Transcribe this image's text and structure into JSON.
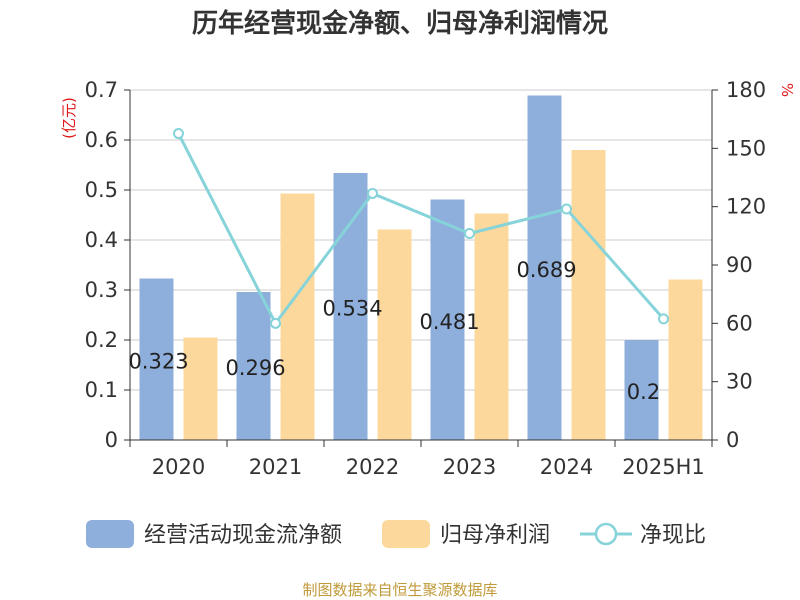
{
  "chart_data": {
    "type": "bar",
    "title": "历年经营现金净额、归母净利润情况",
    "left_axis_unit": "(亿元)",
    "right_axis_unit": "%",
    "categories": [
      "2020",
      "2021",
      "2022",
      "2023",
      "2024",
      "2025H1"
    ],
    "left_axis": {
      "ylim": [
        0,
        0.7
      ],
      "ticks": [
        "0",
        "0.1",
        "0.2",
        "0.3",
        "0.4",
        "0.5",
        "0.6",
        "0.7"
      ]
    },
    "right_axis": {
      "ylim": [
        0,
        180
      ],
      "ticks": [
        "0",
        "30",
        "60",
        "90",
        "120",
        "150",
        "180"
      ]
    },
    "grid": true,
    "legend_position": "bottom",
    "series": [
      {
        "name": "经营活动现金流净额",
        "type": "bar",
        "axis": "left",
        "color": "#8eaedb",
        "values": [
          0.323,
          0.296,
          0.534,
          0.481,
          0.689,
          0.2
        ],
        "labels": [
          "0.323",
          "0.296",
          "0.534",
          "0.481",
          "0.689",
          "0.2"
        ]
      },
      {
        "name": "归母净利润",
        "type": "bar",
        "axis": "left",
        "color": "#fdd89c",
        "values": [
          0.205,
          0.493,
          0.421,
          0.453,
          0.58,
          0.321
        ]
      },
      {
        "name": "净现比",
        "type": "line",
        "axis": "right",
        "color": "#86d4d9",
        "values": [
          157.6,
          60.0,
          126.8,
          106.2,
          118.8,
          62.3
        ]
      }
    ]
  },
  "source_text": "制图数据来自恒生聚源数据库",
  "colors": {
    "axis": "#333333",
    "grid": "#cccccc",
    "unit_red": "#e0181b",
    "source_gold": "#c09a3a"
  }
}
